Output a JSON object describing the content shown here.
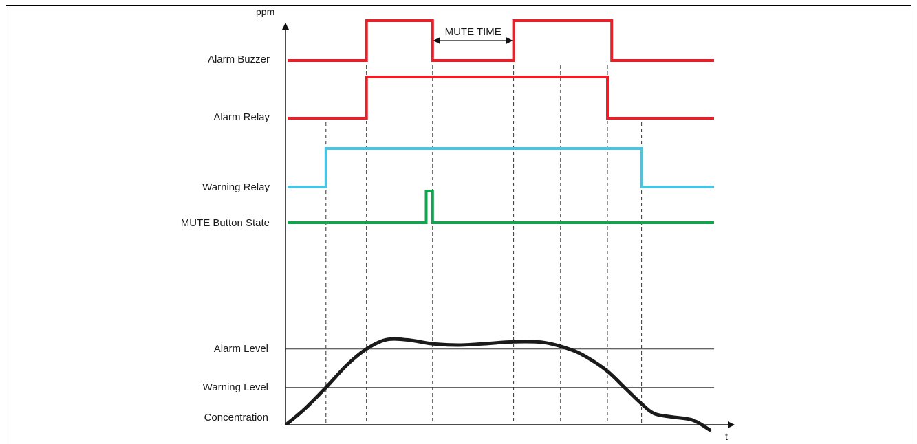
{
  "axes": {
    "y_label": "ppm",
    "x_label": "t"
  },
  "annotation": {
    "mute_time": "MUTE TIME"
  },
  "signals": {
    "alarm_buzzer": {
      "label": "Alarm Buzzer",
      "color": "#e8202a",
      "transitions": [
        {
          "t": 0,
          "state": "low"
        },
        {
          "t": 1.85,
          "state": "high"
        },
        {
          "t": 3.4,
          "state": "low"
        },
        {
          "t": 5.3,
          "state": "high"
        },
        {
          "t": 7.6,
          "state": "low"
        }
      ]
    },
    "alarm_relay": {
      "label": "Alarm Relay",
      "color": "#e8202a",
      "transitions": [
        {
          "t": 0,
          "state": "low"
        },
        {
          "t": 1.85,
          "state": "high"
        },
        {
          "t": 7.5,
          "state": "low"
        }
      ]
    },
    "warning_relay": {
      "label": "Warning Relay",
      "color": "#4dc3e0",
      "transitions": [
        {
          "t": 0,
          "state": "low"
        },
        {
          "t": 0.9,
          "state": "high"
        },
        {
          "t": 8.3,
          "state": "low"
        }
      ]
    },
    "mute_button": {
      "label": "MUTE Button State",
      "color": "#14a350",
      "transitions": [
        {
          "t": 0,
          "state": "low"
        },
        {
          "t": 3.25,
          "state": "high"
        },
        {
          "t": 3.4,
          "state": "low"
        }
      ]
    }
  },
  "levels": {
    "alarm_label": "Alarm Level",
    "warning_label": "Warning Level",
    "concentration_label": "Concentration"
  },
  "concentration_curve": {
    "color": "#1a1a1a",
    "t": [
      0,
      0.4,
      0.9,
      1.4,
      1.85,
      2.3,
      2.8,
      3.4,
      4.0,
      4.6,
      5.3,
      6.0,
      6.6,
      7.0,
      7.5,
      7.9,
      8.3,
      8.6,
      9.0,
      9.5,
      9.9
    ],
    "ppm": [
      0,
      0.22,
      0.55,
      0.9,
      1.14,
      1.28,
      1.28,
      1.22,
      1.2,
      1.22,
      1.25,
      1.24,
      1.14,
      1.02,
      0.8,
      0.55,
      0.3,
      0.15,
      0.1,
      0.05,
      -0.1
    ],
    "warning_level": 0.55,
    "alarm_level": 1.14
  },
  "event_markers_t": [
    0.9,
    1.85,
    3.4,
    5.3,
    6.4,
    7.5,
    8.3
  ]
}
